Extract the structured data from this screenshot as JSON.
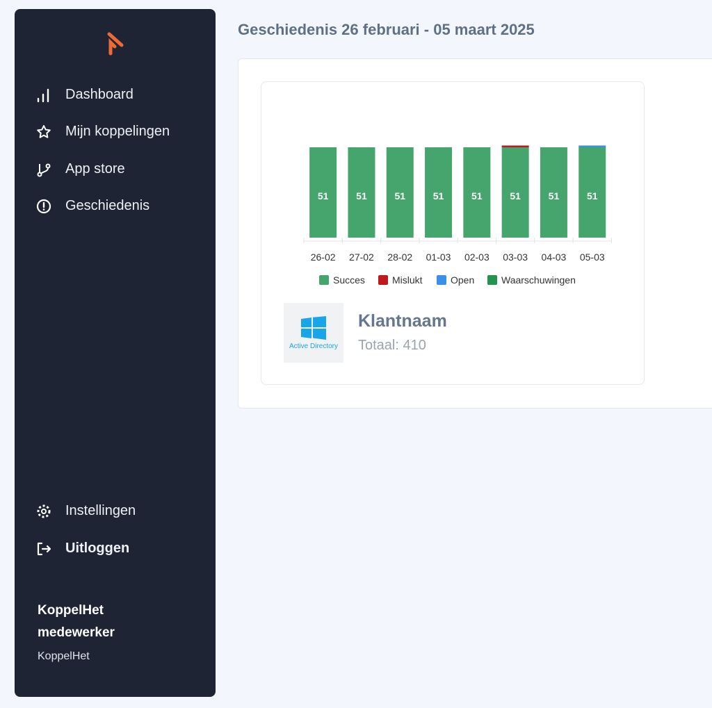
{
  "sidebar": {
    "items": [
      {
        "label": "Dashboard",
        "icon": "bar-chart-icon"
      },
      {
        "label": "Mijn koppelingen",
        "icon": "star-icon"
      },
      {
        "label": "App store",
        "icon": "git-branch-icon"
      },
      {
        "label": "Geschiedenis",
        "icon": "alert-circle-icon"
      }
    ],
    "settings": "Instellingen",
    "logout": "Uitloggen",
    "user_name": "KoppelHet medewerker",
    "user_org": "KoppelHet"
  },
  "page_title": "Geschiedenis 26 februari - 05 maart 2025",
  "card": {
    "logo_text": "Active Directory",
    "name": "Klantnaam",
    "total": "Totaal: 410"
  },
  "colors": {
    "succes": "#45a56c",
    "mislukt": "#c0191c",
    "open": "#3b8fe8",
    "waarschuwingen": "#23934f"
  },
  "chart_data": {
    "type": "bar",
    "stacked": true,
    "categories": [
      "26-02",
      "27-02",
      "28-02",
      "01-03",
      "02-03",
      "03-03",
      "04-03",
      "05-03"
    ],
    "series": [
      {
        "name": "Succes",
        "values": [
          51,
          51,
          51,
          51,
          51,
          51,
          51,
          51
        ]
      },
      {
        "name": "Mislukt",
        "values": [
          0,
          0,
          0,
          0,
          0,
          1,
          0,
          0
        ]
      },
      {
        "name": "Open",
        "values": [
          0,
          0,
          0,
          0,
          0,
          0,
          0,
          1
        ]
      },
      {
        "name": "Waarschuwingen",
        "values": [
          0,
          0,
          0,
          0,
          0,
          0,
          0,
          0
        ]
      }
    ],
    "legend": "bottom"
  }
}
